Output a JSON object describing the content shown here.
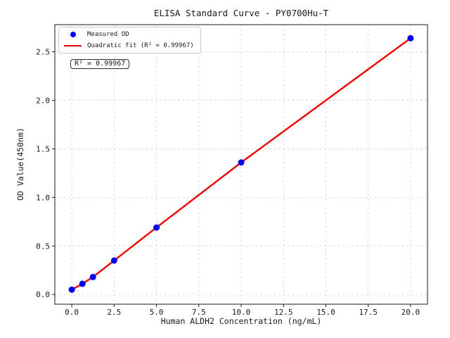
{
  "chart_data": {
    "type": "scatter",
    "title": "ELISA Standard Curve - PY0700Hu-T",
    "xlabel": "Human ALDH2 Concentration (ng/mL)",
    "ylabel": "OD Value(450nm)",
    "x": [
      0,
      0.625,
      1.25,
      2.5,
      5,
      10,
      20
    ],
    "series": [
      {
        "name": "Measured OD",
        "type": "scatter",
        "color": "#0000ee",
        "values": [
          0.05,
          0.11,
          0.18,
          0.35,
          0.69,
          1.36,
          2.64
        ]
      },
      {
        "name": "Quadratic fit (R² = 0.99967)",
        "type": "line",
        "color": "#ee0000",
        "values": [
          0.05,
          0.11,
          0.18,
          0.35,
          0.69,
          1.36,
          2.64
        ]
      }
    ],
    "xlim": [
      -1,
      21
    ],
    "ylim": [
      -0.1,
      2.78
    ],
    "xticks": [
      "0.0",
      "2.5",
      "5.0",
      "7.5",
      "10.0",
      "12.5",
      "15.0",
      "17.5",
      "20.0"
    ],
    "xtick_values": [
      0,
      2.5,
      5,
      7.5,
      10,
      12.5,
      15,
      17.5,
      20
    ],
    "yticks": [
      "0.0",
      "0.5",
      "1.0",
      "1.5",
      "2.0",
      "2.5"
    ],
    "ytick_values": [
      0,
      0.5,
      1,
      1.5,
      2,
      2.5
    ],
    "grid": true,
    "legend_position": "upper-left",
    "r_squared": 0.99967
  },
  "legend": {
    "items": [
      {
        "label": "Measured OD",
        "marker": "dot",
        "color": "#0000ee"
      },
      {
        "label": "Quadratic fit (R² = 0.99967)",
        "marker": "line",
        "color": "#ee0000"
      }
    ]
  },
  "annotation_box": {
    "text": "R² = 0.99967"
  },
  "colors": {
    "points": "#0000ee",
    "fit_line": "#ee0000",
    "grid": "#d6d6d6",
    "spine": "#1a1a1a",
    "text": "#1a1a1a",
    "background": "#ffffff"
  }
}
